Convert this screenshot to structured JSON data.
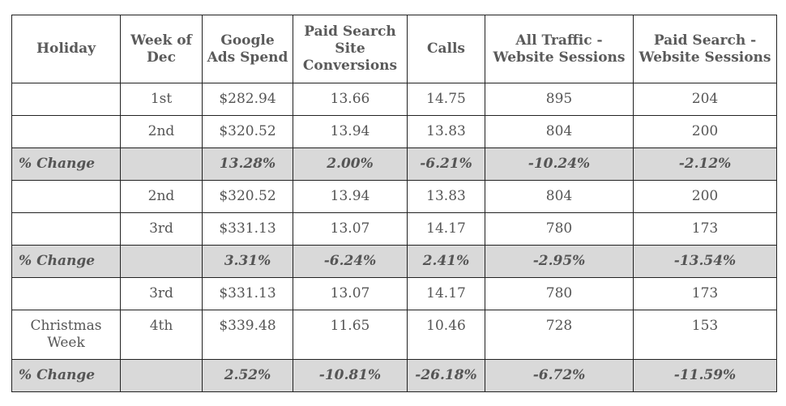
{
  "table": {
    "headers": [
      "Holiday",
      "Week of Dec",
      "Google Ads Spend",
      "Paid Search Site Conversions",
      "Calls",
      "All Traffic - Website Sessions",
      "Paid Search - Website Sessions"
    ],
    "rows": [
      {
        "type": "data",
        "cells": [
          "",
          "1st",
          "$282.94",
          "13.66",
          "14.75",
          "895",
          "204"
        ]
      },
      {
        "type": "data",
        "cells": [
          "",
          "2nd",
          "$320.52",
          "13.94",
          "13.83",
          "804",
          "200"
        ]
      },
      {
        "type": "change",
        "cells": [
          "% Change",
          "",
          "13.28%",
          "2.00%",
          "-6.21%",
          "-10.24%",
          "-2.12%"
        ]
      },
      {
        "type": "data",
        "cells": [
          "",
          "2nd",
          "$320.52",
          "13.94",
          "13.83",
          "804",
          "200"
        ]
      },
      {
        "type": "data",
        "cells": [
          "",
          "3rd",
          "$331.13",
          "13.07",
          "14.17",
          "780",
          "173"
        ]
      },
      {
        "type": "change",
        "cells": [
          "% Change",
          "",
          "3.31%",
          "-6.24%",
          "2.41%",
          "-2.95%",
          "-13.54%"
        ]
      },
      {
        "type": "data",
        "cells": [
          "",
          "3rd",
          "$331.13",
          "13.07",
          "14.17",
          "780",
          "173"
        ]
      },
      {
        "type": "data",
        "tall": true,
        "cells": [
          "Christmas Week",
          "4th",
          "$339.48",
          "11.65",
          "10.46",
          "728",
          "153"
        ]
      },
      {
        "type": "change",
        "cells": [
          "% Change",
          "",
          "2.52%",
          "-10.81%",
          "-26.18%",
          "-6.72%",
          "-11.59%"
        ]
      }
    ]
  }
}
